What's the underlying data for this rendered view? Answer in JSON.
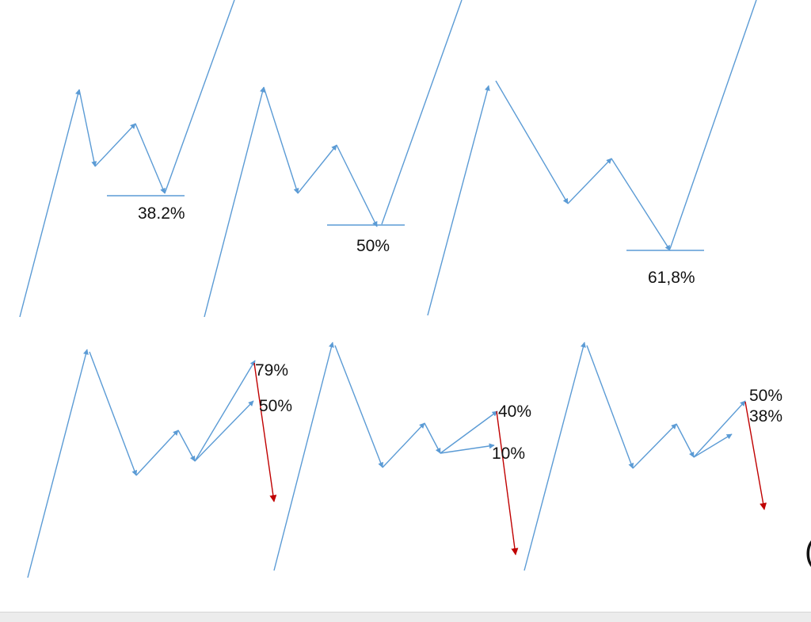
{
  "colors": {
    "line": "#5b9bd5",
    "arrow_red": "#c00000",
    "text": "#111111"
  },
  "labels": {
    "top_1": "38.2%",
    "top_2": "50%",
    "top_3": "61,8%",
    "bottom_1_a": "79%",
    "bottom_1_b": "50%",
    "bottom_2_a": "40%",
    "bottom_2_b": "10%",
    "bottom_3_a": "50%",
    "bottom_3_b": "38%"
  },
  "edge_glyph": "("
}
